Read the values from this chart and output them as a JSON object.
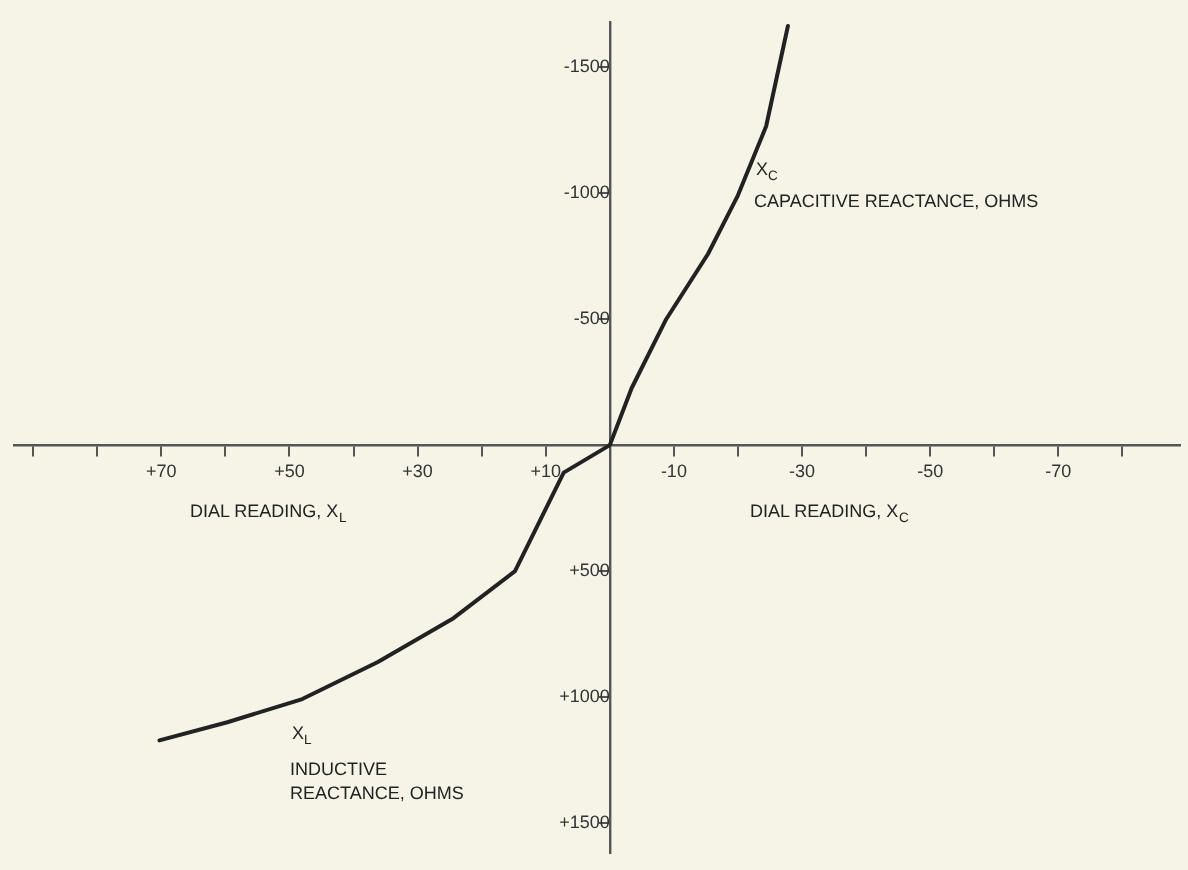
{
  "chart_data": {
    "type": "line",
    "marker": "none",
    "line_style": "solid",
    "grid": false,
    "legend": false,
    "x": [
      70.3,
      59.7,
      48,
      36.2,
      24.4,
      14.8,
      7.2,
      0,
      -3.4,
      -8.8,
      -15.3,
      -20,
      -24.4,
      -27.8
    ],
    "series": [
      {
        "color": "#222222",
        "values": [
          1172,
          1100,
          1008,
          861,
          687,
          500,
          109,
          0,
          -226,
          -500,
          -758,
          -992,
          -1266,
          -1664
        ]
      }
    ],
    "xlim": [
      93,
      -89
    ],
    "xticks": [
      {
        "value": 90,
        "label": null
      },
      {
        "value": 80,
        "label": null
      },
      {
        "value": 70,
        "label": "+70"
      },
      {
        "value": 60,
        "label": null
      },
      {
        "value": 50,
        "label": "+50"
      },
      {
        "value": 40,
        "label": null
      },
      {
        "value": 30,
        "label": "+30"
      },
      {
        "value": 20,
        "label": null
      },
      {
        "value": 10,
        "label": "+10"
      },
      {
        "value": -10,
        "label": "-10"
      },
      {
        "value": -20,
        "label": null
      },
      {
        "value": -30,
        "label": "-30"
      },
      {
        "value": -40,
        "label": null
      },
      {
        "value": -50,
        "label": "-50"
      },
      {
        "value": -60,
        "label": null
      },
      {
        "value": -70,
        "label": "-70"
      },
      {
        "value": -80,
        "label": null
      }
    ],
    "ylim": [
      1620,
      -1680
    ],
    "yticks": [
      -1500,
      -1000,
      -500,
      {
        "value": 500,
        "label": "+500"
      },
      {
        "value": 1000,
        "label": "+1000"
      },
      {
        "value": 1500,
        "label": "+1500"
      }
    ],
    "annotations": [
      "X$_{C}$",
      "CAPACITIVE REACTANCE, OHMS",
      "X$_{L}$",
      "INDUCTIVE",
      "REACTANCE, OHMS",
      "DIAL READING, X$_{L}$",
      "DIAL READING, X$_{C}$"
    ]
  }
}
